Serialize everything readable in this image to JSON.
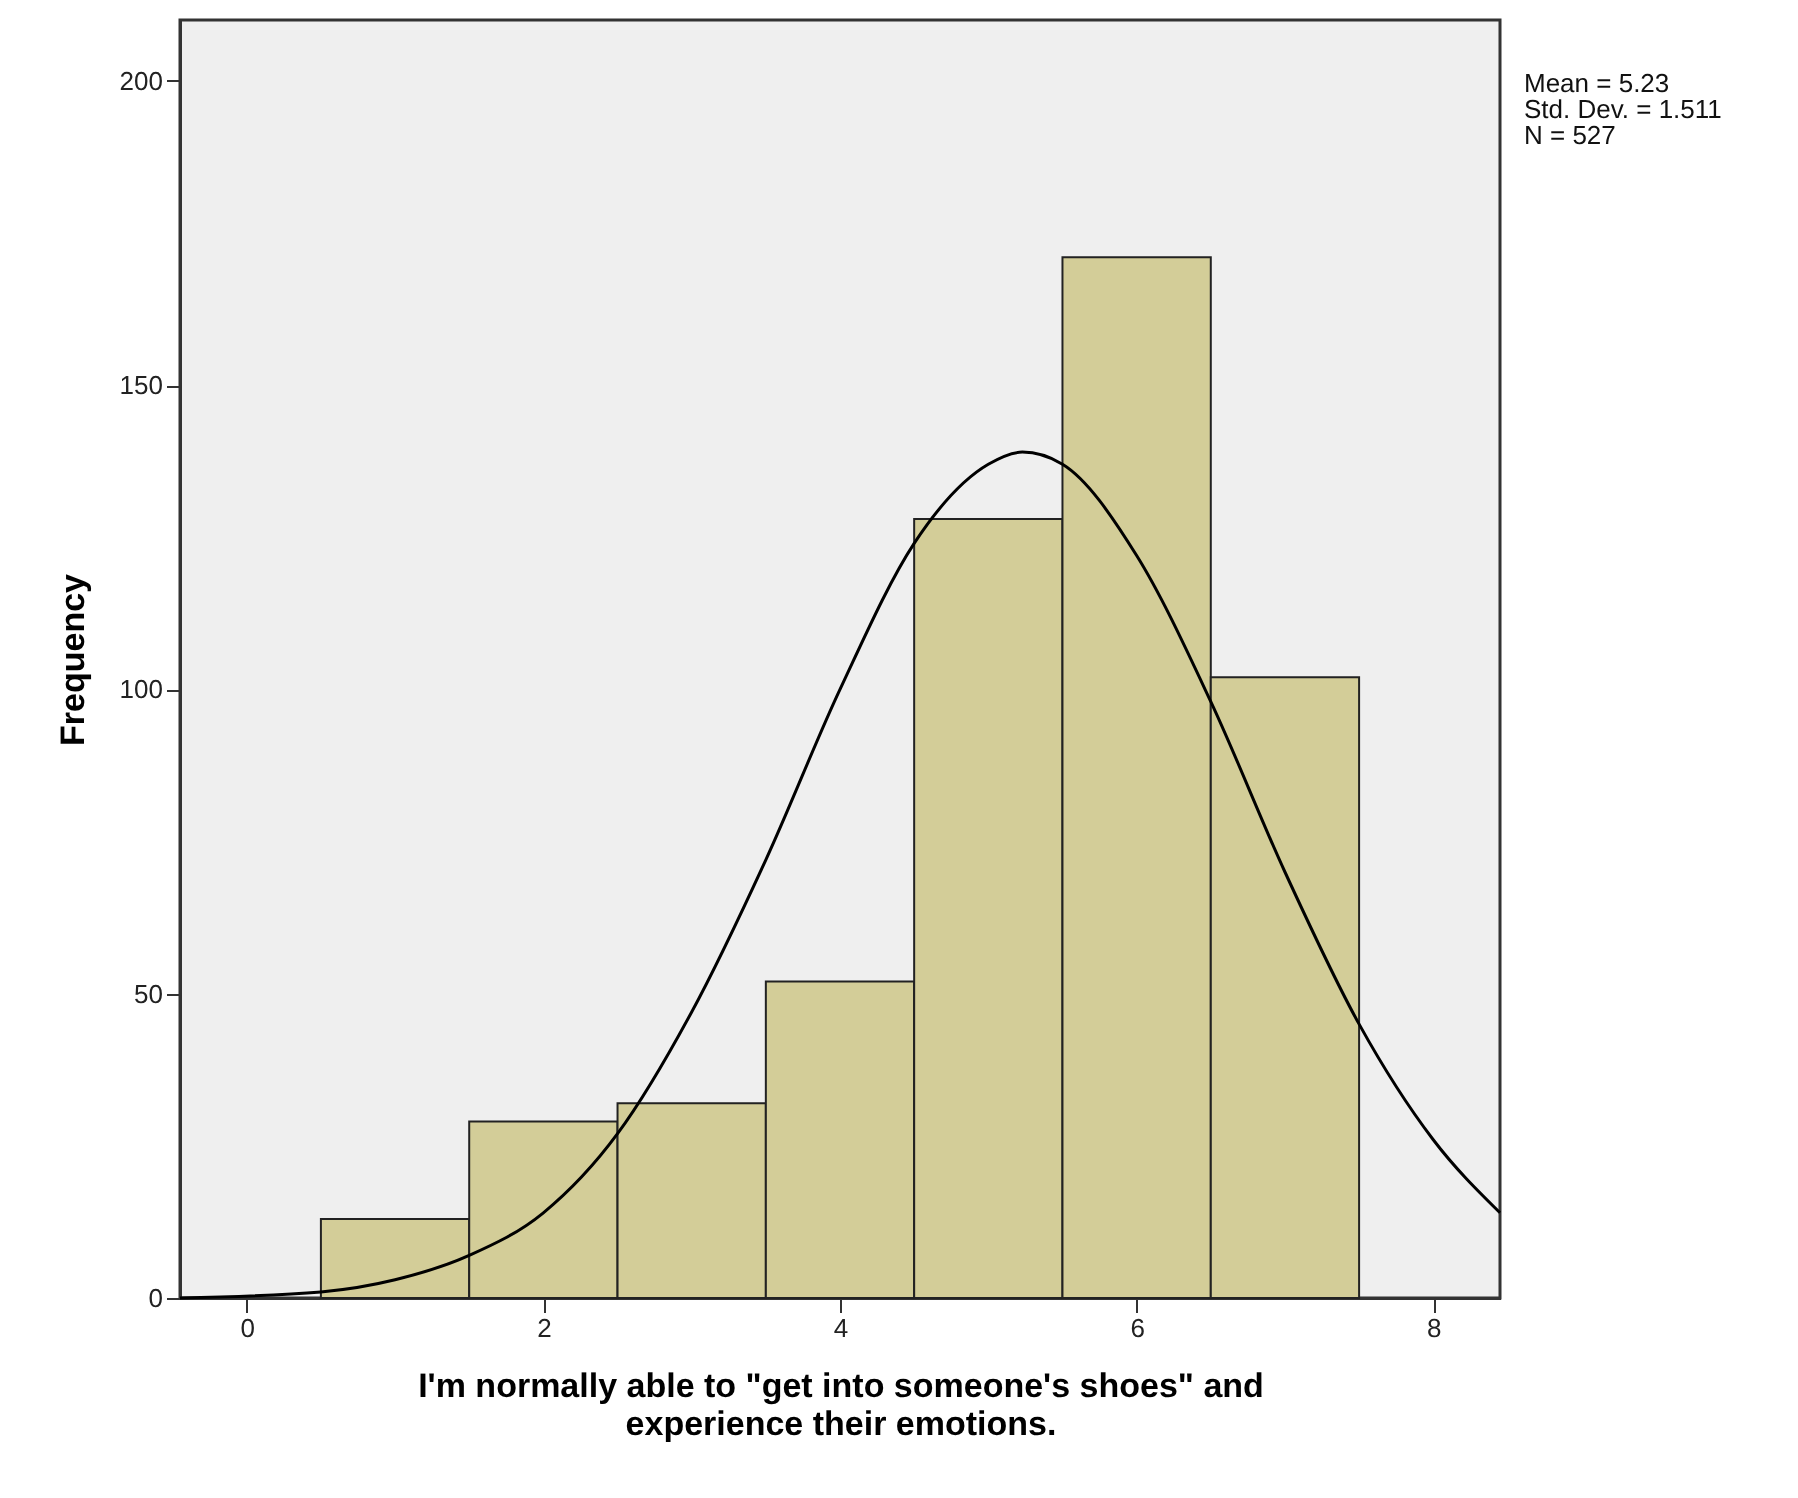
{
  "chart_data": {
    "type": "histogram",
    "xlabel": "I'm normally able to \"get into someone's shoes\" and\nexperience their emotions.",
    "ylabel": "Frequency",
    "bins": [
      0.5,
      1.5,
      2.5,
      3.5,
      4.5,
      5.5,
      6.5,
      7.5
    ],
    "values": [
      13,
      29,
      32,
      52,
      128,
      171,
      102
    ],
    "color": "#d3cd98",
    "series": [
      {
        "type": "line",
        "color": "#000000",
        "x": [
          -0.45,
          0.5,
          1,
          1.5,
          2,
          2.5,
          3,
          3.5,
          4,
          4.5,
          5,
          5.23,
          5.5,
          6,
          6.5,
          7,
          7.5,
          8,
          8.45
        ],
        "values": [
          0,
          1,
          3,
          7,
          14,
          27,
          47,
          72,
          100,
          124,
          137,
          139,
          137,
          122,
          98,
          70,
          45,
          26,
          14
        ]
      }
    ],
    "xlim": [
      -0.45,
      8.45
    ],
    "ylim": [
      0,
      210
    ],
    "xticks": [
      0,
      2,
      4,
      6,
      8
    ],
    "yticks": [
      0,
      50,
      100,
      150,
      200
    ],
    "grid": false,
    "annotations": [
      "Mean = 5.23",
      "Std. Dev. = 1.511",
      "N = 527"
    ]
  }
}
